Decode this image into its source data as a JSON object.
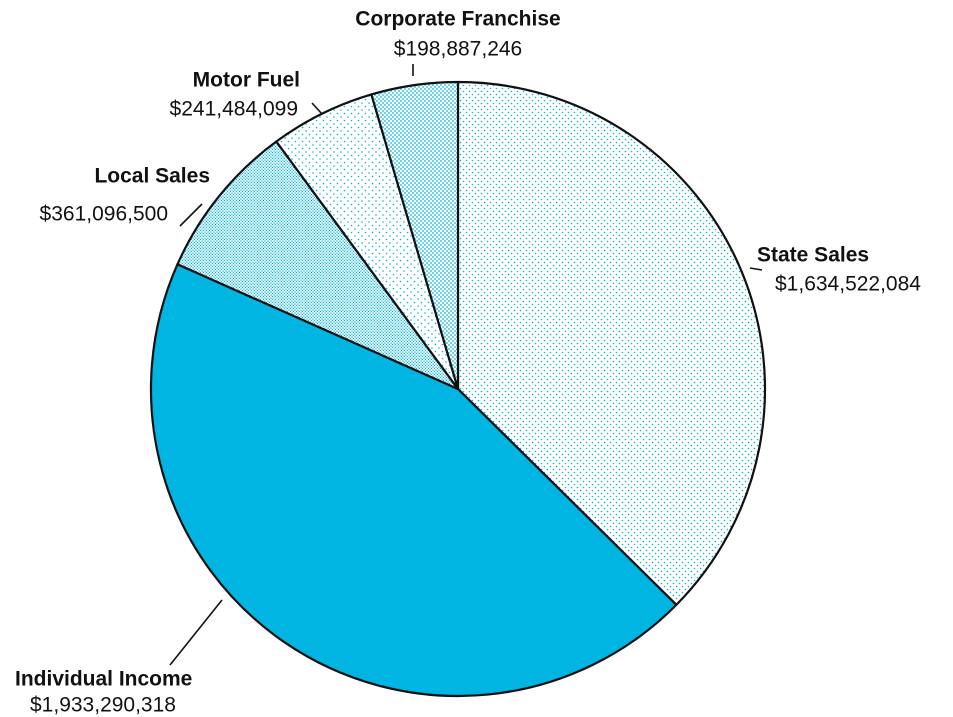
{
  "chart_data": {
    "type": "pie",
    "categories": [
      "State Sales",
      "Individual Income",
      "Local Sales",
      "Motor Fuel",
      "Corporate Franchise"
    ],
    "values": [
      1634522084,
      1933290318,
      361096500,
      241484099,
      198887246
    ],
    "value_labels": [
      "$1,634,522,084",
      "$1,933,290,318",
      "$361,096,500",
      "$241,484,099",
      "$198,887,246"
    ],
    "colors": [
      "#00b5e2",
      "#00b5e2",
      "#00b5e2",
      "#00b5e2",
      "#00b5e2"
    ]
  }
}
